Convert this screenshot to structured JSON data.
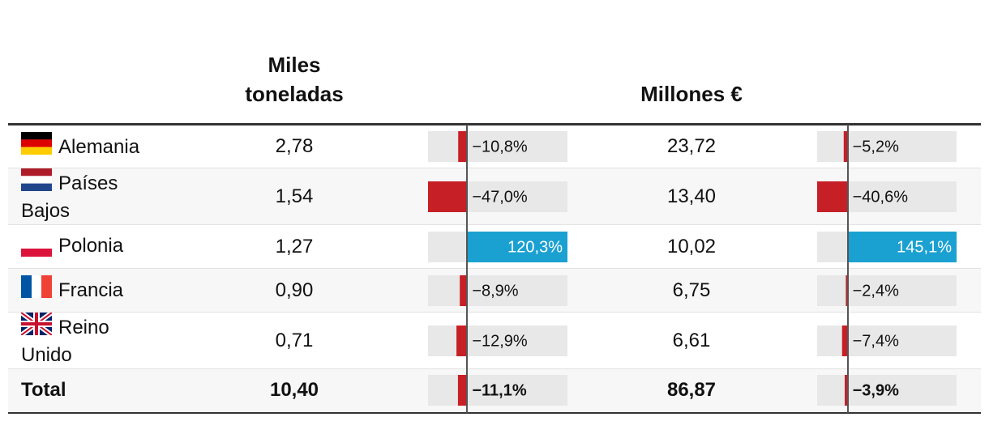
{
  "table": {
    "headers": {
      "tonnes": "Miles toneladas",
      "euros": "Millones €"
    },
    "rows": [
      {
        "country": "Alemania",
        "tonnes": "2,78",
        "tonnes_change": -10.8,
        "tonnes_change_label": "−10,8%",
        "euros": "23,72",
        "euros_change": -5.2,
        "euros_change_label": "−5,2%"
      },
      {
        "country": "Países Bajos",
        "tonnes": "1,54",
        "tonnes_change": -47.0,
        "tonnes_change_label": "−47,0%",
        "euros": "13,40",
        "euros_change": -40.6,
        "euros_change_label": "−40,6%"
      },
      {
        "country": "Polonia",
        "tonnes": "1,27",
        "tonnes_change": 120.3,
        "tonnes_change_label": "120,3%",
        "euros": "10,02",
        "euros_change": 145.1,
        "euros_change_label": "145,1%"
      },
      {
        "country": "Francia",
        "tonnes": "0,90",
        "tonnes_change": -8.9,
        "tonnes_change_label": "−8,9%",
        "euros": "6,75",
        "euros_change": -2.4,
        "euros_change_label": "−2,4%"
      },
      {
        "country": "Reino Unido",
        "tonnes": "0,71",
        "tonnes_change": -12.9,
        "tonnes_change_label": "−12,9%",
        "euros": "6,61",
        "euros_change": -7.4,
        "euros_change_label": "−7,4%"
      },
      {
        "country": "Total",
        "tonnes": "10,40",
        "tonnes_change": -11.1,
        "tonnes_change_label": "−11,1%",
        "euros": "86,87",
        "euros_change": -3.9,
        "euros_change_label": "−3,9%"
      }
    ],
    "negative_color": "#c62026",
    "positive_color": "#1ba1d1"
  }
}
